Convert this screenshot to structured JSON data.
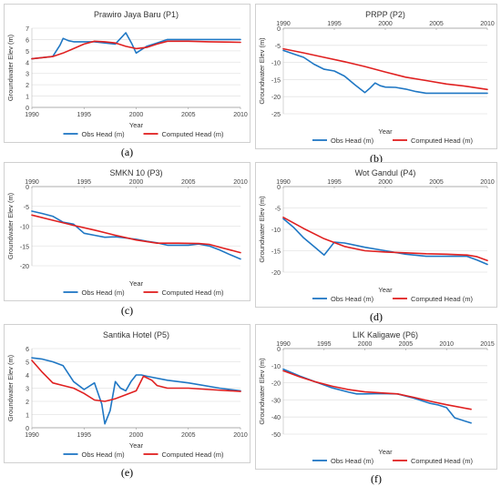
{
  "chart_data": [
    {
      "type": "line",
      "title": "Prawiro Jaya Baru (P1)",
      "xlabel": "Year",
      "ylabel": "Groundwater Elev (m)",
      "caption": "(a)",
      "xlim": [
        1990,
        2010
      ],
      "ylim": [
        0,
        7
      ],
      "xticks": [
        1990,
        1995,
        2000,
        2005,
        2010
      ],
      "yticks": [
        0,
        1,
        2,
        3,
        4,
        5,
        6,
        7
      ],
      "legend": "bottom",
      "series": [
        {
          "name": "Obs Head (m)",
          "color": "#1f77c4",
          "x": [
            1990,
            1991,
            1992,
            1992.7,
            1993,
            1993.5,
            1994,
            1995,
            1996,
            1997,
            1998,
            1999,
            1999.6,
            2000,
            2000.5,
            2001,
            2002,
            2003,
            2005,
            2007,
            2010
          ],
          "y": [
            4.3,
            4.4,
            4.5,
            5.5,
            6.1,
            5.9,
            5.8,
            5.8,
            5.8,
            5.7,
            5.6,
            6.6,
            5.6,
            4.8,
            5.1,
            5.4,
            5.7,
            6.0,
            6.0,
            6.0,
            6.0
          ]
        },
        {
          "name": "Computed Head (m)",
          "color": "#e02020",
          "x": [
            1990,
            1991,
            1992,
            1993,
            1994,
            1995,
            1996,
            1997,
            1998,
            1999,
            2000,
            2001,
            2002,
            2003,
            2005,
            2007,
            2010
          ],
          "y": [
            4.3,
            4.4,
            4.5,
            4.8,
            5.2,
            5.6,
            5.85,
            5.8,
            5.7,
            5.4,
            5.2,
            5.3,
            5.6,
            5.85,
            5.85,
            5.8,
            5.75
          ]
        }
      ]
    },
    {
      "type": "line",
      "title": "PRPP (P2)",
      "xlabel": "Year",
      "ylabel": "Groundwater Elev (m)",
      "caption": "(b)",
      "xlim": [
        1990,
        2010
      ],
      "ylim": [
        -25,
        0
      ],
      "xticks": [
        1990,
        1995,
        2000,
        2005,
        2010
      ],
      "yticks": [
        0,
        -5,
        -10,
        -15,
        -20,
        -25
      ],
      "legend": "bottom",
      "series": [
        {
          "name": "Obs Head (m)",
          "color": "#1f77c4",
          "x": [
            1990,
            1991,
            1992,
            1993,
            1994,
            1995,
            1996,
            1997,
            1998,
            1998.5,
            1999,
            1999.5,
            2000,
            2001,
            2002,
            2003,
            2004,
            2005,
            2007,
            2010
          ],
          "y": [
            -6.5,
            -7.5,
            -8.5,
            -10.5,
            -12.0,
            -12.5,
            -14.0,
            -16.5,
            -18.8,
            -17.5,
            -16.0,
            -16.8,
            -17.2,
            -17.3,
            -17.8,
            -18.5,
            -19.0,
            -19.0,
            -19.0,
            -19.0
          ]
        },
        {
          "name": "Computed Head (m)",
          "color": "#e02020",
          "x": [
            1990,
            1992,
            1994,
            1996,
            1998,
            2000,
            2002,
            2004,
            2006,
            2008,
            2010
          ],
          "y": [
            -6.0,
            -7.2,
            -8.5,
            -9.8,
            -11.2,
            -12.8,
            -14.3,
            -15.3,
            -16.3,
            -17.0,
            -17.9
          ]
        }
      ]
    },
    {
      "type": "line",
      "title": "SMKN 10 (P3)",
      "xlabel": "Year",
      "ylabel": "Groundwater Elev (m)",
      "caption": "(c)",
      "xlim": [
        1990,
        2010
      ],
      "ylim": [
        -20,
        0
      ],
      "xticks": [
        1990,
        1995,
        2000,
        2005,
        2010
      ],
      "yticks": [
        0,
        -5,
        -10,
        -15,
        -20
      ],
      "legend": "bottom",
      "series": [
        {
          "name": "Obs Head (m)",
          "color": "#1f77c4",
          "x": [
            1990,
            1991,
            1992,
            1993,
            1994,
            1995,
            1996,
            1997,
            1998,
            1999,
            2000,
            2001,
            2002,
            2003,
            2004,
            2005,
            2006,
            2007,
            2008,
            2009,
            2010
          ],
          "y": [
            -6.2,
            -6.8,
            -7.5,
            -9.0,
            -9.5,
            -11.8,
            -12.3,
            -12.8,
            -12.7,
            -13.0,
            -13.3,
            -13.8,
            -14.2,
            -14.8,
            -14.8,
            -14.8,
            -14.5,
            -15.0,
            -16.0,
            -17.2,
            -18.3
          ]
        },
        {
          "name": "Computed Head (m)",
          "color": "#e02020",
          "x": [
            1990,
            1992,
            1994,
            1996,
            1998,
            2000,
            2002,
            2004,
            2006,
            2007,
            2008,
            2010
          ],
          "y": [
            -7.2,
            -8.5,
            -9.8,
            -11.0,
            -12.3,
            -13.5,
            -14.3,
            -14.3,
            -14.4,
            -14.6,
            -15.3,
            -16.7
          ]
        }
      ]
    },
    {
      "type": "line",
      "title": "Wot Gandul (P4)",
      "xlabel": "Year",
      "ylabel": "Groundwater Elev (m)",
      "caption": "(d)",
      "xlim": [
        1990,
        2010
      ],
      "ylim": [
        -20,
        0
      ],
      "xticks": [
        1990,
        1995,
        2000,
        2005,
        2010
      ],
      "yticks": [
        0,
        -5,
        -10,
        -15,
        -20
      ],
      "legend": "bottom",
      "series": [
        {
          "name": "Obs Head (m)",
          "color": "#1f77c4",
          "x": [
            1990,
            1991,
            1992,
            1993,
            1994,
            1994.5,
            1995,
            1996,
            1998,
            2000,
            2002,
            2004,
            2006,
            2008,
            2009,
            2010
          ],
          "y": [
            -7.5,
            -9.5,
            -12.0,
            -14.0,
            -16.0,
            -14.5,
            -13.0,
            -13.2,
            -14.2,
            -15.0,
            -15.8,
            -16.3,
            -16.3,
            -16.3,
            -17.2,
            -18.2
          ]
        },
        {
          "name": "Computed Head (m)",
          "color": "#e02020",
          "x": [
            1990,
            1992,
            1994,
            1996,
            1998,
            2000,
            2002,
            2004,
            2006,
            2008,
            2009,
            2010
          ],
          "y": [
            -7.2,
            -9.8,
            -12.2,
            -14.0,
            -15.0,
            -15.3,
            -15.5,
            -15.7,
            -15.8,
            -16.0,
            -16.4,
            -17.3
          ]
        }
      ]
    },
    {
      "type": "line",
      "title": "Santika Hotel (P5)",
      "xlabel": "Year",
      "ylabel": "Groundwater Elev (m)",
      "caption": "(e)",
      "xlim": [
        1990,
        2010
      ],
      "ylim": [
        0,
        6
      ],
      "xticks": [
        1990,
        1995,
        2000,
        2005,
        2010
      ],
      "yticks": [
        0,
        1,
        2,
        3,
        4,
        5,
        6
      ],
      "legend": "bottom",
      "series": [
        {
          "name": "Obs Head (m)",
          "color": "#1f77c4",
          "x": [
            1990,
            1991,
            1992,
            1993,
            1994,
            1995,
            1996,
            1996.7,
            1997,
            1997.5,
            1998,
            1998.5,
            1999,
            1999.5,
            2000,
            2000.5,
            2001,
            2003,
            2005,
            2008,
            2010
          ],
          "y": [
            5.3,
            5.2,
            5.0,
            4.7,
            3.5,
            2.9,
            3.4,
            1.8,
            0.3,
            1.3,
            3.5,
            3.0,
            2.8,
            3.5,
            4.0,
            4.0,
            3.9,
            3.6,
            3.4,
            3.0,
            2.8
          ]
        },
        {
          "name": "Computed Head (m)",
          "color": "#e02020",
          "x": [
            1990,
            1991,
            1992,
            1993,
            1994,
            1995,
            1996,
            1997,
            1998,
            1999,
            2000,
            2000.7,
            2001.5,
            2002,
            2003,
            2005,
            2007,
            2010
          ],
          "y": [
            5.1,
            4.2,
            3.4,
            3.2,
            3.0,
            2.6,
            2.1,
            2.0,
            2.2,
            2.5,
            2.8,
            3.9,
            3.6,
            3.2,
            3.0,
            3.0,
            2.9,
            2.75
          ]
        }
      ]
    },
    {
      "type": "line",
      "title": "LIK Kaligawe (P6)",
      "xlabel": "Year",
      "ylabel": "Groundwater Elev (m)",
      "caption": "(f)",
      "xlim": [
        1990,
        2015
      ],
      "ylim": [
        -50,
        0
      ],
      "xticks": [
        1990,
        1995,
        2000,
        2005,
        2010,
        2015
      ],
      "yticks": [
        0,
        -10,
        -20,
        -30,
        -40,
        -50
      ],
      "legend": "bottom",
      "series": [
        {
          "name": "Obs Head (m)",
          "color": "#1f77c4",
          "x": [
            1990,
            1992,
            1994,
            1996,
            1998,
            1999,
            2000,
            2002,
            2004,
            2006,
            2008,
            2009,
            2010,
            2011,
            2013
          ],
          "y": [
            -12.0,
            -16.0,
            -19.5,
            -23.0,
            -25.5,
            -26.5,
            -26.5,
            -26.3,
            -26.5,
            -29.0,
            -32.0,
            -33.0,
            -34.5,
            -40.5,
            -43.5
          ]
        },
        {
          "name": "Computed Head (m)",
          "color": "#e02020",
          "x": [
            1990,
            1992,
            1994,
            1996,
            1998,
            2000,
            2002,
            2004,
            2006,
            2008,
            2010,
            2013
          ],
          "y": [
            -13.0,
            -16.5,
            -19.5,
            -22.0,
            -24.0,
            -25.3,
            -25.9,
            -26.5,
            -28.5,
            -30.8,
            -32.8,
            -35.5
          ]
        }
      ]
    }
  ]
}
